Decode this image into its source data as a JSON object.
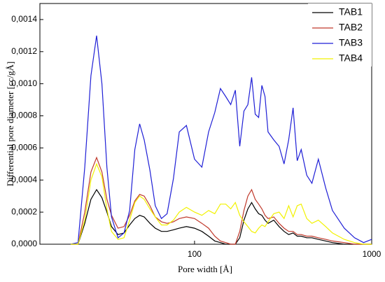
{
  "chart_data": {
    "type": "line",
    "xlabel": "Pore width [Å]",
    "ylabel": "Differential pore diameter [cc/gÅ]",
    "x": [
      20,
      22,
      24,
      26,
      28,
      30,
      32,
      34,
      37,
      40,
      43,
      46,
      49,
      52,
      56,
      60,
      65,
      70,
      76,
      82,
      90,
      100,
      110,
      120,
      130,
      140,
      150,
      160,
      170,
      180,
      190,
      200,
      210,
      220,
      230,
      240,
      250,
      260,
      280,
      300,
      320,
      340,
      360,
      380,
      400,
      430,
      460,
      500,
      550,
      600,
      700,
      800,
      900,
      1000
    ],
    "xlim": [
      13.4,
      1000
    ],
    "xscale": "log",
    "xticks": [
      100,
      1000
    ],
    "ylim": [
      0,
      0.0015
    ],
    "yticks": [
      {
        "value": 0,
        "label": "0,0000"
      },
      {
        "value": 0.0002,
        "label": "0,0002"
      },
      {
        "value": 0.0004,
        "label": "0,0004"
      },
      {
        "value": 0.0006,
        "label": "0,0006"
      },
      {
        "value": 0.0008,
        "label": "0,0008"
      },
      {
        "value": 0.001,
        "label": "0,0010"
      },
      {
        "value": 0.0012,
        "label": "0,0012"
      },
      {
        "value": 0.0014,
        "label": "0,0014"
      }
    ],
    "legend": "upper right",
    "series": [
      {
        "name": "TAB1",
        "color": "#000000",
        "values": [
          0,
          0,
          0.00013,
          0.00028,
          0.00034,
          0.00029,
          0.0002,
          0.00011,
          6e-05,
          7e-05,
          0.00012,
          0.00016,
          0.00018,
          0.00017,
          0.00013,
          0.0001,
          8e-05,
          8e-05,
          9e-05,
          0.0001,
          0.00011,
          0.0001,
          8e-05,
          5e-05,
          2e-05,
          1e-05,
          0,
          0,
          0,
          4e-05,
          0.00015,
          0.00022,
          0.00026,
          0.00022,
          0.00019,
          0.00018,
          0.00015,
          0.00013,
          0.00015,
          0.00011,
          8e-05,
          6e-05,
          7e-05,
          5e-05,
          5e-05,
          4e-05,
          4e-05,
          3e-05,
          2e-05,
          1e-05,
          0,
          0,
          0,
          0
        ]
      },
      {
        "name": "TAB2",
        "color": "#c0392b",
        "values": [
          0,
          0,
          0.0002,
          0.00045,
          0.00054,
          0.00045,
          0.00028,
          0.00018,
          0.0001,
          0.00011,
          0.00018,
          0.00027,
          0.00031,
          0.0003,
          0.00024,
          0.00017,
          0.00014,
          0.00013,
          0.00014,
          0.00016,
          0.00017,
          0.00016,
          0.00013,
          0.0001,
          5e-05,
          2e-05,
          1e-05,
          0,
          0,
          8e-05,
          0.00021,
          0.0003,
          0.00034,
          0.00028,
          0.00025,
          0.00022,
          0.00018,
          0.00016,
          0.00017,
          0.00013,
          0.0001,
          8e-05,
          8e-05,
          6e-05,
          6e-05,
          5e-05,
          5e-05,
          4e-05,
          3e-05,
          2e-05,
          1e-05,
          0,
          0,
          0
        ]
      },
      {
        "name": "TAB3",
        "color": "#1f1fd6",
        "values": [
          0,
          1e-05,
          0.00048,
          0.00105,
          0.0013,
          0.001,
          0.00048,
          0.00017,
          4e-05,
          7e-05,
          0.00021,
          0.00059,
          0.00075,
          0.00065,
          0.00046,
          0.00024,
          0.00016,
          0.00019,
          0.00041,
          0.0007,
          0.00074,
          0.00053,
          0.00048,
          0.0007,
          0.00082,
          0.00097,
          0.00092,
          0.00087,
          0.00096,
          0.00061,
          0.00083,
          0.00087,
          0.00104,
          0.00081,
          0.00079,
          0.00099,
          0.00092,
          0.0007,
          0.00065,
          0.00061,
          0.0005,
          0.00065,
          0.00085,
          0.00052,
          0.00059,
          0.00043,
          0.00038,
          0.00053,
          0.00035,
          0.00021,
          0.0001,
          4e-05,
          1e-05,
          3e-05
        ]
      },
      {
        "name": "TAB4",
        "color": "#f2f200",
        "values": [
          0,
          0,
          0.00015,
          0.0004,
          0.0005,
          0.00042,
          0.00022,
          8e-05,
          3e-05,
          4e-05,
          0.00015,
          0.00026,
          0.0003,
          0.00028,
          0.00022,
          0.00017,
          0.00012,
          0.00012,
          0.00015,
          0.0002,
          0.00023,
          0.0002,
          0.00018,
          0.00021,
          0.00019,
          0.00025,
          0.00025,
          0.00022,
          0.00026,
          0.00018,
          0.00014,
          0.00011,
          8e-05,
          7e-05,
          0.0001,
          0.00012,
          0.00011,
          0.00014,
          0.00019,
          0.0002,
          0.00016,
          0.00024,
          0.00017,
          0.00024,
          0.00025,
          0.00016,
          0.00013,
          0.00015,
          0.00011,
          7e-05,
          3e-05,
          1e-05,
          0,
          0
        ]
      }
    ]
  }
}
